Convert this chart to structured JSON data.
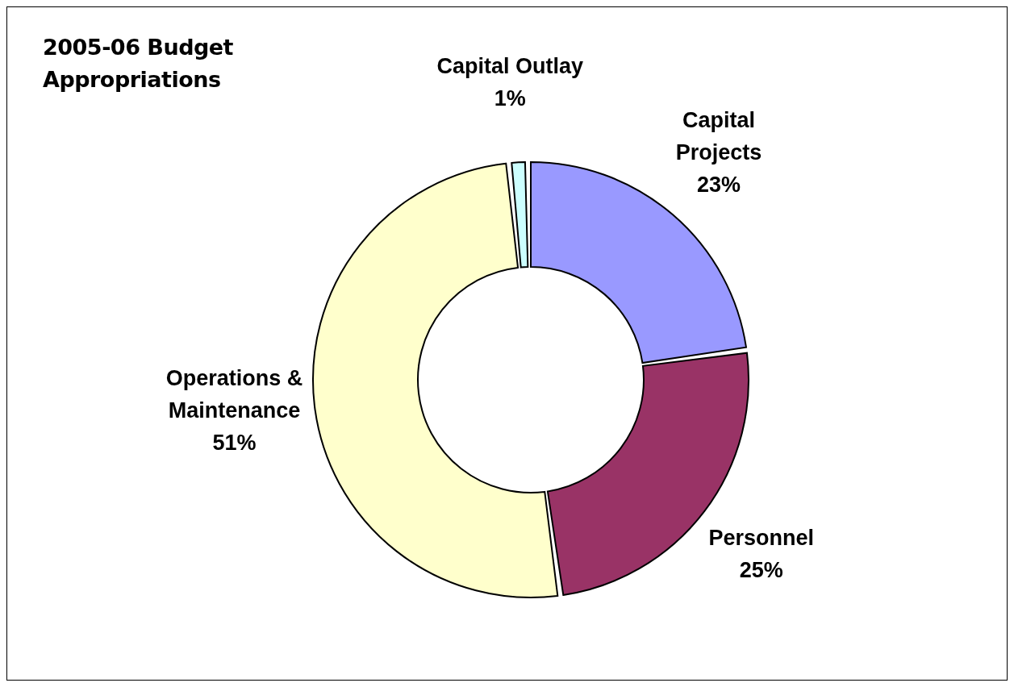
{
  "chart_data": {
    "type": "donut",
    "title": "2005-06 Budget Appropriations",
    "categories": [
      "Capital Projects",
      "Personnel",
      "Operations & Maintenance",
      "Capital Outlay"
    ],
    "values": [
      23,
      25,
      51,
      1
    ],
    "colors": [
      "#9999ff",
      "#993366",
      "#ffffcc",
      "#ccffff"
    ],
    "value_labels": [
      "23%",
      "25%",
      "51%",
      "1%"
    ],
    "legend": false
  }
}
